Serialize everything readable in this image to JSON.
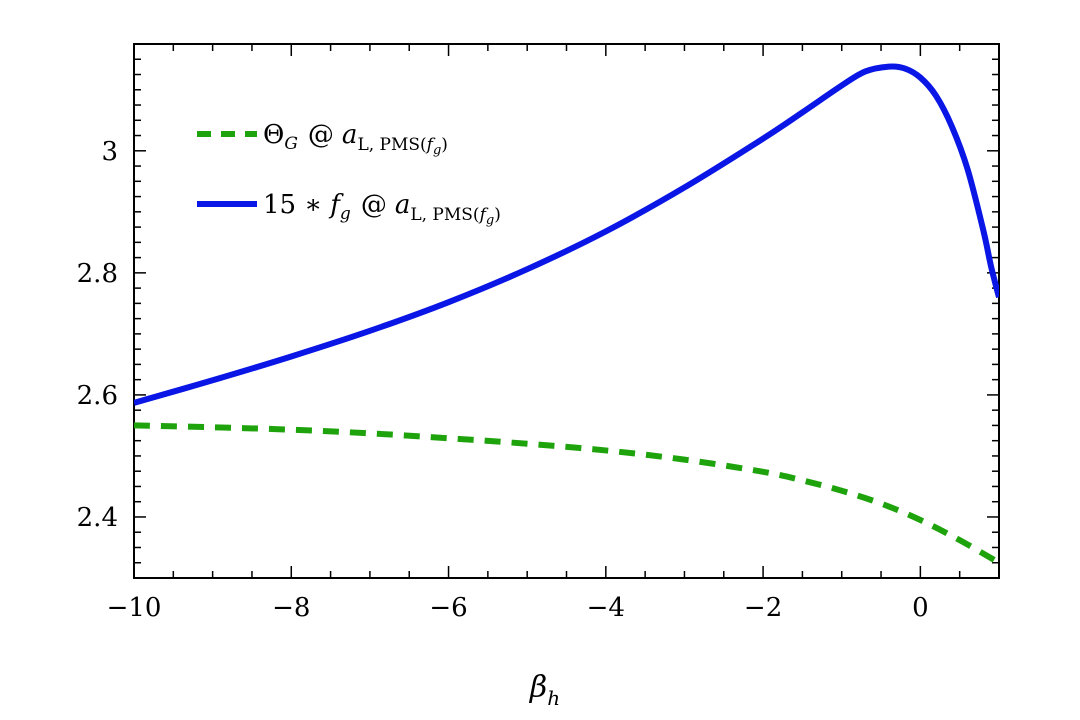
{
  "chart_data": {
    "type": "line",
    "xlabel": "β",
    "xlabel_sub": "h",
    "xlim": [
      -10,
      1
    ],
    "ylim": [
      2.3,
      3.175
    ],
    "x_ticks": [
      -10,
      -8,
      -6,
      -4,
      -2,
      0
    ],
    "x_tick_labels": [
      "−10",
      "−8",
      "−6",
      "−4",
      "−2",
      "0"
    ],
    "y_ticks": [
      2.4,
      2.6,
      2.8,
      3.0
    ],
    "y_tick_labels": [
      "2.4",
      "2.6",
      "2.8",
      "3"
    ],
    "grid": false,
    "legend_position": "top-left",
    "series": [
      {
        "name": "Θ_G @ a_L,PMS(f_g)",
        "color": "#1fa30c",
        "style": "dashed",
        "x": [
          -10,
          -9,
          -8,
          -7,
          -6,
          -5,
          -4,
          -3,
          -2,
          -1.5,
          -1,
          -0.5,
          0,
          0.5,
          1
        ],
        "y": [
          2.55,
          2.547,
          2.543,
          2.537,
          2.529,
          2.52,
          2.509,
          2.494,
          2.474,
          2.46,
          2.443,
          2.422,
          2.395,
          2.362,
          2.325
        ]
      },
      {
        "name": "15 ∗ f_g @ a_L,PMS(f_g)",
        "color": "#0a16e6",
        "style": "solid",
        "x": [
          -10,
          -9,
          -8,
          -7,
          -6,
          -5,
          -4,
          -3,
          -2,
          -1.5,
          -1,
          -0.7,
          -0.4,
          -0.2,
          0,
          0.2,
          0.4,
          0.6,
          0.8,
          0.9,
          1
        ],
        "y": [
          2.587,
          2.624,
          2.663,
          2.705,
          2.752,
          2.806,
          2.868,
          2.94,
          3.02,
          3.063,
          3.107,
          3.13,
          3.138,
          3.135,
          3.12,
          3.09,
          3.04,
          2.97,
          2.87,
          2.81,
          2.76
        ]
      }
    ]
  },
  "legend": {
    "entries": [
      {
        "main": "Θ",
        "main_sub": "G",
        "at": "@",
        "a": "a",
        "sub": "L, PMS(",
        "sub_italic": "f",
        "sub_sub": "g",
        "sub_close": ")"
      },
      {
        "main": "15 ∗ ",
        "main_italic": "f",
        "main_sub": "g",
        "at": "@",
        "a": "a",
        "sub": "L, PMS(",
        "sub_italic": "f",
        "sub_sub": "g",
        "sub_close": ")"
      }
    ]
  }
}
